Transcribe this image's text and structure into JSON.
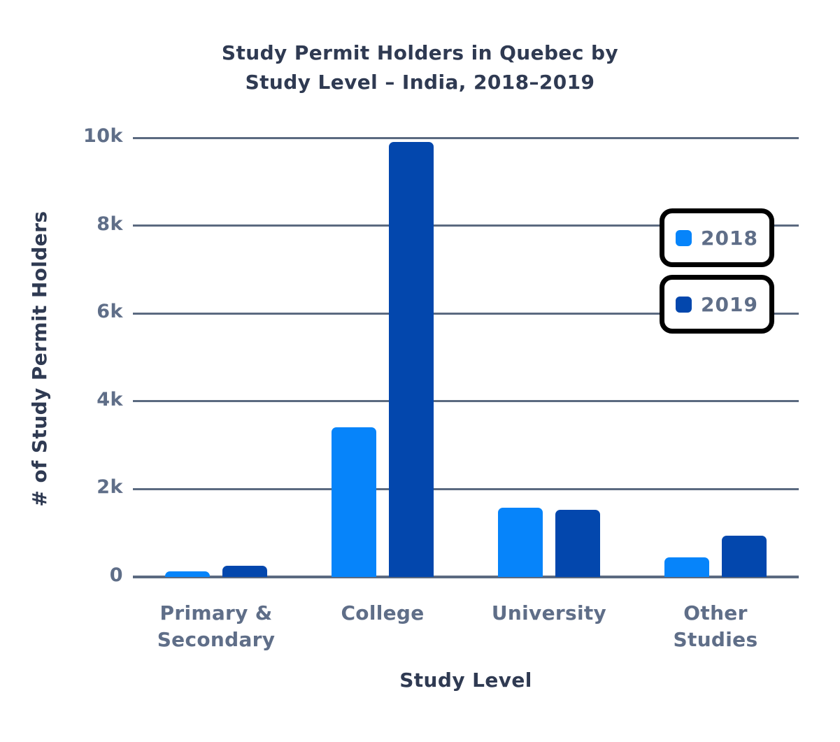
{
  "chart_data": {
    "type": "bar",
    "title": "Study Permit Holders in Quebec by Study Level – India, 2018–2019",
    "title_lines": [
      "Study Permit Holders in Quebec by",
      "Study Level – India, 2018–2019"
    ],
    "xlabel": "Study Level",
    "ylabel": "# of Study Permit Holders",
    "categories": [
      "Primary & Secondary",
      "College",
      "University",
      "Other Studies"
    ],
    "category_lines": [
      [
        "Primary &",
        "Secondary"
      ],
      [
        "College"
      ],
      [
        "University"
      ],
      [
        "Other",
        "Studies"
      ]
    ],
    "series": [
      {
        "name": "2018",
        "color": "#0684FA",
        "values": [
          125,
          3400,
          1580,
          450
        ]
      },
      {
        "name": "2019",
        "color": "#0347AD",
        "values": [
          250,
          9900,
          1530,
          940
        ]
      }
    ],
    "ylim": [
      0,
      10000
    ],
    "yticks": [
      {
        "label": "0",
        "value": 0
      },
      {
        "label": "2k",
        "value": 2000
      },
      {
        "label": "4k",
        "value": 4000
      },
      {
        "label": "6k",
        "value": 6000
      },
      {
        "label": "8k",
        "value": 8000
      },
      {
        "label": "10k",
        "value": 10000
      }
    ],
    "grid": "horizontal",
    "legend_position": "right",
    "colors": {
      "title_text": "#2F3A52",
      "axis_tick_text": "#5F6E88",
      "gridline": "#5B6A80",
      "legend_border": "#000000",
      "legend_background": "#FFFFFF"
    }
  }
}
